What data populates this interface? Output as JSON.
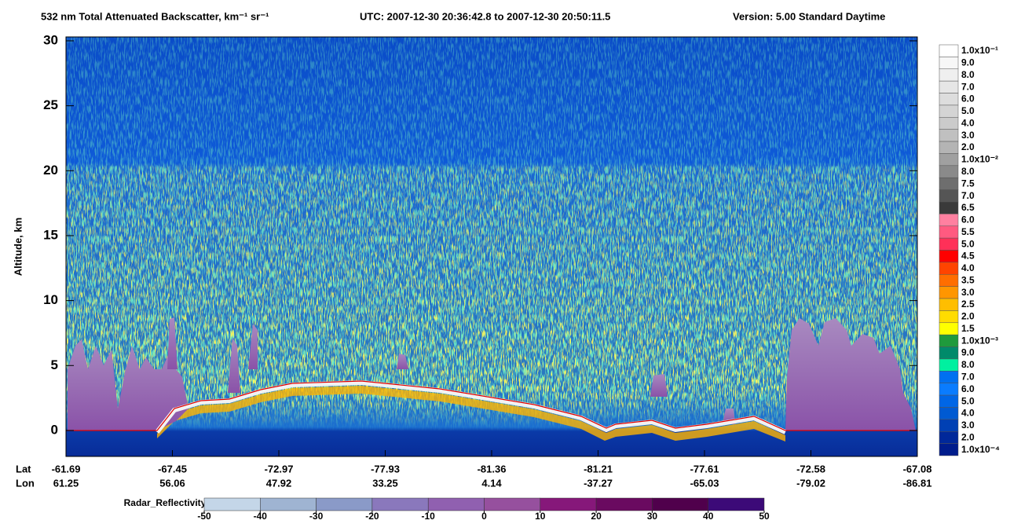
{
  "chart_data": {
    "type": "heatmap",
    "title": "532 nm Total Attenuated Backscatter, km⁻¹ sr⁻¹",
    "utc": "UTC:  2007-12-30 20:36:42.8  to  2007-12-30 20:50:11.5",
    "version": "Version: 5.00  Standard  Daytime",
    "y_label": "Altitude, km",
    "ylim": [
      -2,
      30.3
    ],
    "yticks": [
      0,
      5,
      10,
      15,
      20,
      25,
      30
    ],
    "x_rows": [
      {
        "name": "Lat",
        "labels": [
          "-61.69",
          "-67.45",
          "-72.97",
          "-77.93",
          "-81.36",
          "-81.21",
          "-77.61",
          "-72.58",
          "-67.08"
        ]
      },
      {
        "name": "Lon",
        "labels": [
          "61.25",
          "56.06",
          "47.92",
          "33.25",
          "4.14",
          "-37.27",
          "-65.03",
          "-79.02",
          "-86.81"
        ]
      }
    ],
    "colorbar": {
      "labels": [
        "1.0x10⁻¹",
        "9.0",
        "8.0",
        "7.0",
        "6.0",
        "5.0",
        "4.0",
        "3.0",
        "2.0",
        "1.0x10⁻²",
        "8.0",
        "7.5",
        "7.0",
        "6.5",
        "6.0",
        "5.5",
        "5.0",
        "4.5",
        "4.0",
        "3.5",
        "3.0",
        "2.5",
        "2.0",
        "1.5",
        "1.0x10⁻³",
        "9.0",
        "8.0",
        "7.0",
        "6.0",
        "5.0",
        "4.0",
        "3.0",
        "2.0",
        "1.0x10⁻⁴"
      ],
      "colors": [
        "#ffffff",
        "#f7f7f7",
        "#efefef",
        "#e6e6e6",
        "#dddddd",
        "#d4d4d4",
        "#cbcbcb",
        "#c0c0c0",
        "#b4b4b4",
        "#a0a0a0",
        "#8a8a8a",
        "#6e6e6e",
        "#555555",
        "#3a3a3a",
        "#ff80a0",
        "#ff5a80",
        "#ff3058",
        "#ff0000",
        "#ff4400",
        "#ff6e00",
        "#ff9600",
        "#ffbe00",
        "#ffdc00",
        "#ffff00",
        "#1f9a3c",
        "#008a6a",
        "#00f0a0",
        "#0070f0",
        "#0a7cff",
        "#0066e6",
        "#005ad2",
        "#0040b4",
        "#00289a",
        "#001c8c"
      ]
    },
    "radar": {
      "label": "Radar_Reflectivity",
      "lim": [
        -50,
        50
      ],
      "ticks": [
        -50,
        -40,
        -30,
        -20,
        -10,
        0,
        10,
        20,
        30,
        40,
        50
      ],
      "colors": [
        "#c4d6e8",
        "#9fb4d2",
        "#8a9ac8",
        "#8a78bc",
        "#9060b0",
        "#96509e",
        "#86187a",
        "#6a0a60",
        "#50004c",
        "#3c0a78"
      ]
    }
  }
}
